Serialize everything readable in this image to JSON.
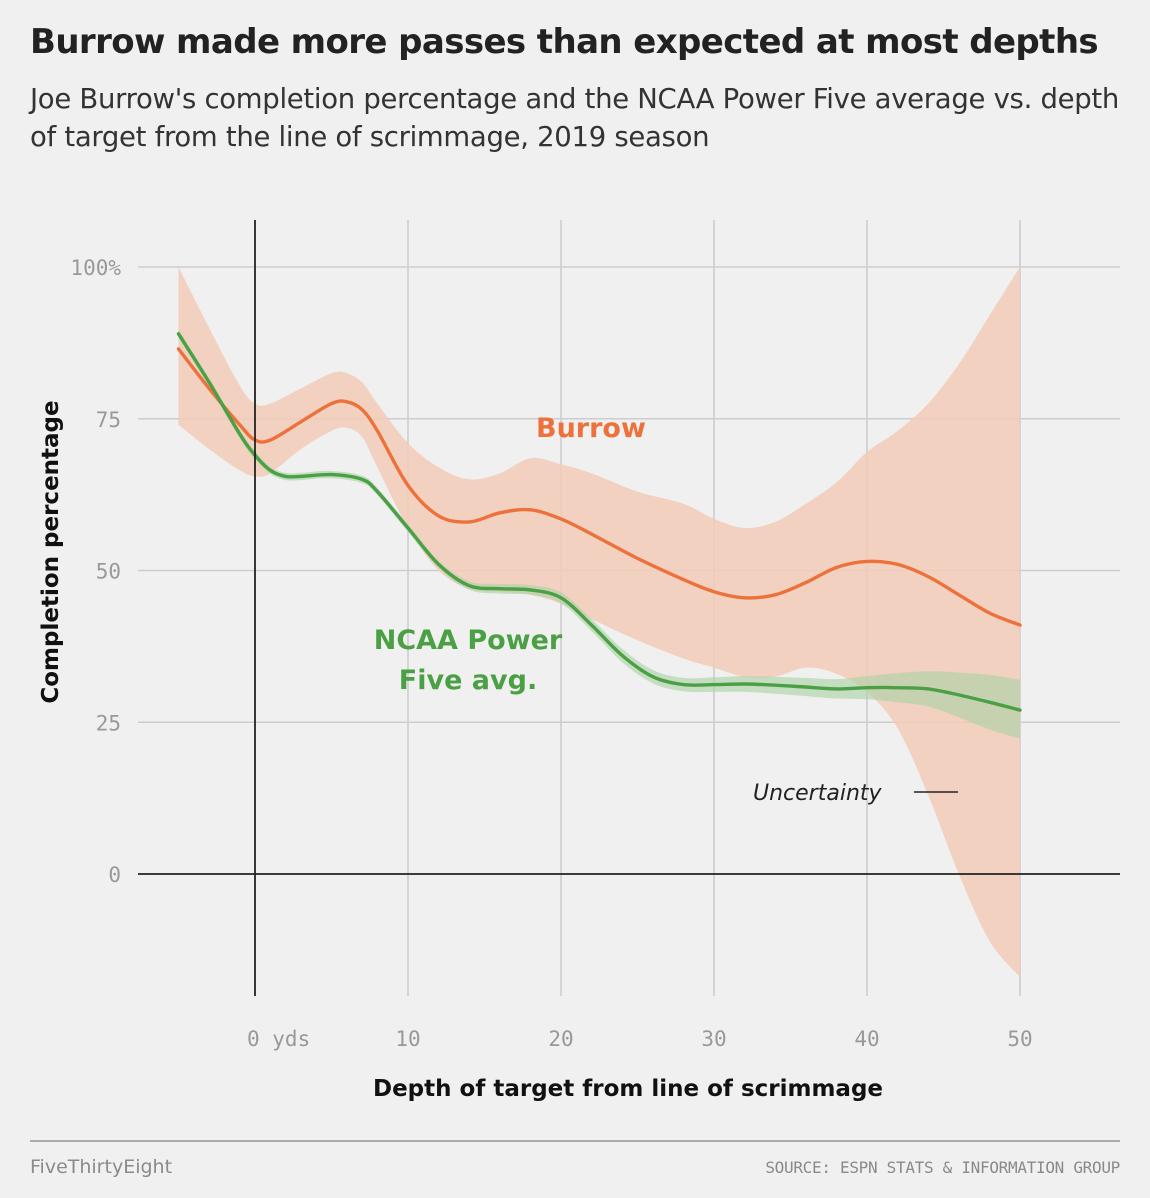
{
  "header": {
    "title": "Burrow made more passes than expected at most depths",
    "subtitle": "Joe Burrow's completion percentage and the NCAA Power Five average vs. depth of target from the line of scrimmage, 2019 season"
  },
  "footer": {
    "brand": "FiveThirtyEight",
    "source": "SOURCE: ESPN STATS & INFORMATION GROUP"
  },
  "colors": {
    "burrow": "#ed713a",
    "burrow_band": "#f2cbb8",
    "ncaa": "#4ba045",
    "ncaa_band": "#a9d2a3",
    "grid": "#cdcdcd",
    "zero_line": "#222222"
  },
  "chart_data": {
    "type": "line",
    "xlabel": "Depth of target from line of scrimmage",
    "ylabel": "Completion percentage",
    "xlim": [
      -7.7,
      55.5
    ],
    "ylim": [
      -20,
      108
    ],
    "x_ticks": [
      {
        "value": 0,
        "label": "0 yds"
      },
      {
        "value": 10,
        "label": "10"
      },
      {
        "value": 20,
        "label": "20"
      },
      {
        "value": 30,
        "label": "30"
      },
      {
        "value": 40,
        "label": "40"
      },
      {
        "value": 50,
        "label": "50"
      }
    ],
    "y_ticks": [
      {
        "value": 100,
        "label": "100%"
      },
      {
        "value": 75,
        "label": "75"
      },
      {
        "value": 50,
        "label": "50"
      },
      {
        "value": 25,
        "label": "25"
      },
      {
        "value": 0,
        "label": "0"
      }
    ],
    "grid": true,
    "series": [
      {
        "name": "Burrow",
        "color": "#ed713a",
        "band_color": "#f2cbb8",
        "x": [
          -5,
          -3,
          -1,
          0,
          1,
          3,
          5,
          6,
          7,
          8,
          10,
          12,
          14,
          16,
          18,
          20,
          22,
          25,
          28,
          30,
          32,
          34,
          36,
          38,
          40,
          42,
          44,
          46,
          48,
          50
        ],
        "y": [
          86.5,
          80,
          74,
          71.5,
          71.5,
          74.5,
          77.5,
          77.8,
          76.5,
          73,
          64,
          59,
          58,
          59.5,
          60,
          58.5,
          56,
          52,
          48.5,
          46.5,
          45.5,
          46,
          48,
          50.5,
          51.5,
          51,
          49,
          46,
          43,
          41
        ],
        "lower": [
          74,
          70,
          66.5,
          65.5,
          66,
          70,
          73,
          73.5,
          72,
          67,
          57,
          50,
          47,
          46.5,
          46,
          44.5,
          42,
          38.5,
          35.5,
          34,
          32.5,
          32.5,
          34,
          33,
          30,
          24,
          13,
          0,
          -11,
          -17
        ],
        "upper": [
          100,
          90,
          80.5,
          77.5,
          77.5,
          80,
          82.5,
          82.5,
          81,
          77.5,
          71,
          67,
          65,
          66,
          68.5,
          67.5,
          66,
          63,
          61,
          58.5,
          57,
          58,
          61,
          64.5,
          69.5,
          73,
          77.5,
          84,
          92,
          100
        ]
      },
      {
        "name": "NCAA Power Five avg.",
        "color": "#4ba045",
        "band_color": "#a9d2a3",
        "x": [
          -5,
          -3,
          -1,
          0,
          1,
          2,
          3,
          5,
          7,
          8,
          10,
          12,
          14,
          16,
          18,
          20,
          22,
          24,
          26,
          28,
          30,
          32,
          34,
          36,
          38,
          40,
          42,
          44,
          46,
          48,
          50
        ],
        "y": [
          89,
          81,
          72.5,
          69,
          66.5,
          65.5,
          65.5,
          65.8,
          65,
          63,
          57,
          51,
          47.5,
          47,
          46.8,
          45.5,
          41,
          36,
          32.5,
          31.2,
          31.2,
          31.3,
          31.1,
          30.8,
          30.5,
          30.7,
          30.7,
          30.5,
          29.5,
          28.3,
          27
        ],
        "lower": [
          88.3,
          80.3,
          71.8,
          68.3,
          65.9,
          64.9,
          64.9,
          65.2,
          64.4,
          62.4,
          56.4,
          50.4,
          46.8,
          46.2,
          46,
          44.6,
          40,
          34.9,
          31.4,
          30.1,
          30,
          30,
          29.7,
          29.3,
          28.9,
          28.8,
          28.3,
          27.6,
          25.8,
          23.8,
          22.3
        ],
        "upper": [
          89.7,
          81.7,
          73.2,
          69.7,
          67.1,
          66.1,
          66.1,
          66.4,
          65.6,
          63.6,
          57.6,
          51.6,
          48.2,
          47.8,
          47.6,
          46.4,
          42,
          37.1,
          33.6,
          32.3,
          32.4,
          32.6,
          32.5,
          32.3,
          32.1,
          32.6,
          33.1,
          33.4,
          33.2,
          32.8,
          32
        ]
      }
    ],
    "annotations": {
      "burrow_label": "Burrow",
      "ncaa_label_line1": "NCAA Power",
      "ncaa_label_line2": "Five avg.",
      "uncertainty": "Uncertainty"
    }
  }
}
